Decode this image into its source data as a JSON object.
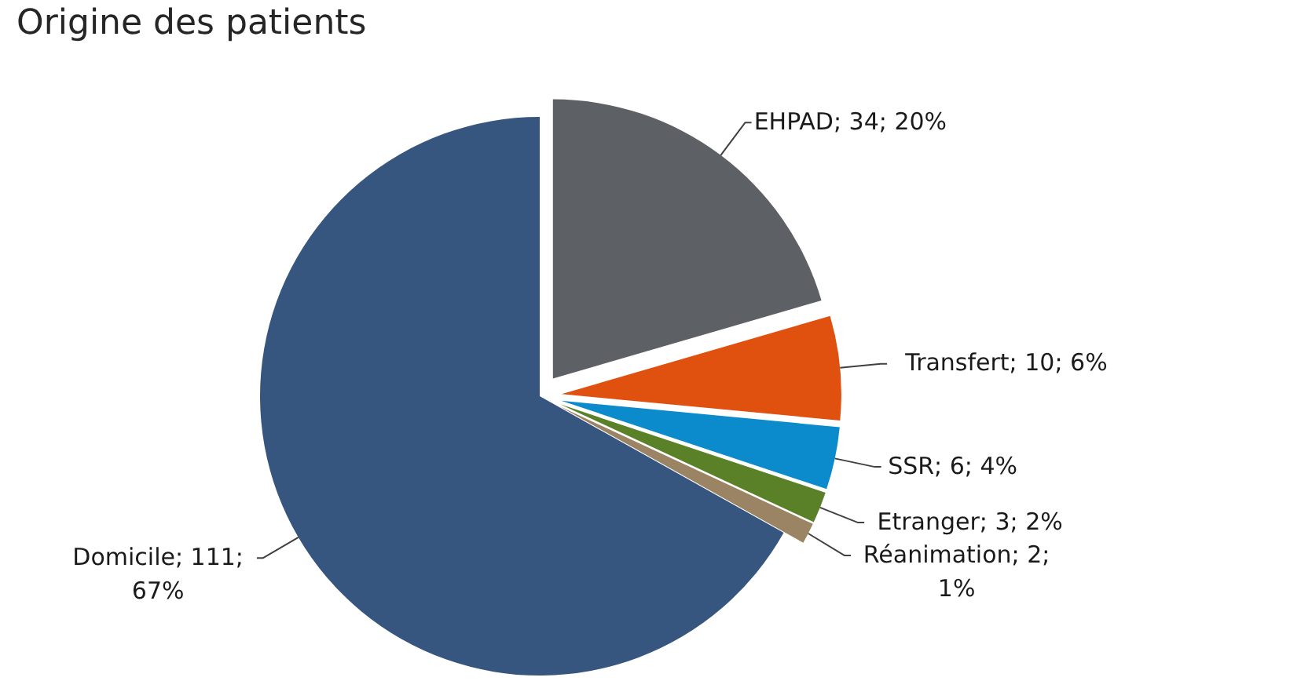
{
  "chart_data": {
    "type": "pie",
    "title": "Origine des patients",
    "categories": [
      "EHPAD",
      "Transfert",
      "SSR",
      "Etranger",
      "Réanimation",
      "Domicile"
    ],
    "values": [
      34,
      10,
      6,
      3,
      2,
      111
    ],
    "colors": [
      "#5d6064",
      "#e0500e",
      "#0b8bcc",
      "#5b8128",
      "#9a8463",
      "#36567f"
    ],
    "value_labels": [
      "34; 20%",
      "10; 6%",
      "6; 4%",
      "3; 2%",
      "2;\n1%",
      "111;\n67%"
    ]
  }
}
